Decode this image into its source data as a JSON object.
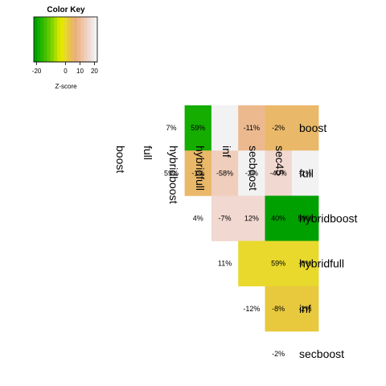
{
  "chart_data": {
    "type": "heatmap",
    "color_key": {
      "title": "Color Key",
      "xlabel": "Z-score",
      "ticks": [
        "-20",
        "0",
        "10",
        "20"
      ],
      "tick_values": [
        -20,
        0,
        10,
        20
      ],
      "range": [
        -22,
        22
      ],
      "colors": [
        "#00a000",
        "#14ad00",
        "#2ab700",
        "#45c000",
        "#62ca00",
        "#84d400",
        "#aadd00",
        "#d2e600",
        "#e6e600",
        "#e8d92c",
        "#e8c93e",
        "#eab869",
        "#eab07a",
        "#ecb98f",
        "#efc4a5",
        "#f0cebc",
        "#f1d8d0",
        "#f2e6e5",
        "#f2f2f2"
      ]
    },
    "rows": [
      "boost",
      "full",
      "hybridboost",
      "hybridfull",
      "inf",
      "secboost"
    ],
    "columns": [
      "boost",
      "full",
      "hybridboost",
      "hybridfull",
      "inf",
      "secboost",
      "sec45"
    ],
    "cells": [
      {
        "row": 0,
        "col": 1,
        "label": "7%",
        "z": null
      },
      {
        "row": 0,
        "col": 2,
        "label": "59%",
        "z": -18
      },
      {
        "row": 0,
        "col": 3,
        "label": "",
        "z": 22
      },
      {
        "row": 0,
        "col": 4,
        "label": "-11%",
        "z": 10
      },
      {
        "row": 0,
        "col": 5,
        "label": "-2%",
        "z": 4
      },
      {
        "row": 0,
        "col": 6,
        "label": "",
        "z": 4
      },
      {
        "row": 1,
        "col": 1,
        "label": "59%",
        "z": null
      },
      {
        "row": 1,
        "col": 2,
        "label": "-1%",
        "z": 4
      },
      {
        "row": 1,
        "col": 3,
        "label": "-58%",
        "z": 13
      },
      {
        "row": 1,
        "col": 4,
        "label": "-2%",
        "z": 22
      },
      {
        "row": 1,
        "col": 5,
        "label": "-40%",
        "z": 17
      },
      {
        "row": 1,
        "col": 6,
        "label": "-2%",
        "z": 22
      },
      {
        "row": 2,
        "col": 2,
        "label": "4%",
        "z": null
      },
      {
        "row": 2,
        "col": 3,
        "label": "-7%",
        "z": 17
      },
      {
        "row": 2,
        "col": 4,
        "label": "12%",
        "z": 17
      },
      {
        "row": 2,
        "col": 5,
        "label": "40%",
        "z": -22
      },
      {
        "row": 2,
        "col": 6,
        "label": "59%",
        "z": -20
      },
      {
        "row": 3,
        "col": 3,
        "label": "11%",
        "z": null
      },
      {
        "row": 3,
        "col": 4,
        "label": "",
        "z": 1
      },
      {
        "row": 3,
        "col": 5,
        "label": "59%",
        "z": 1
      },
      {
        "row": 3,
        "col": 6,
        "label": "-8%",
        "z": 1
      },
      {
        "row": 4,
        "col": 4,
        "label": "-12%",
        "z": null
      },
      {
        "row": 4,
        "col": 5,
        "label": "-8%",
        "z": 3
      },
      {
        "row": 4,
        "col": 6,
        "label": "-2%",
        "z": 3
      },
      {
        "row": 5,
        "col": 5,
        "label": "-2%",
        "z": null
      }
    ]
  }
}
